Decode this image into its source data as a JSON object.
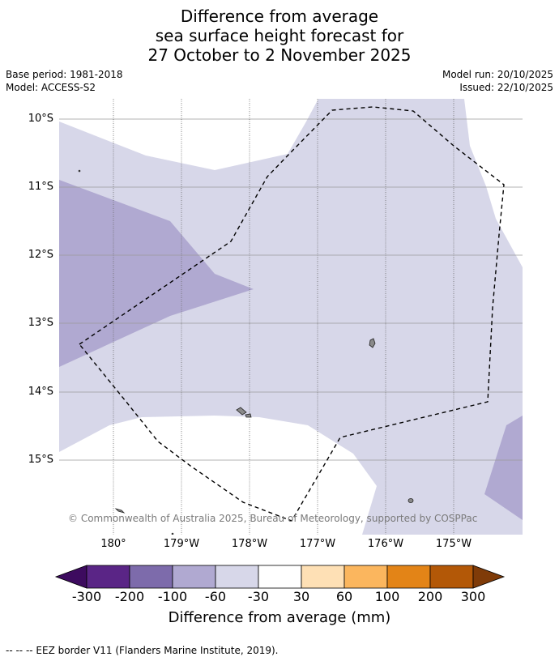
{
  "title": {
    "line1": "Difference from average",
    "line2": "sea surface height forecast for",
    "line3": "27 October to 2 November 2025"
  },
  "meta": {
    "base_period": "Base period: 1981-2018",
    "model": "Model: ACCESS-S2",
    "model_run": "Model run: 20/10/2025",
    "issued": "Issued: 22/10/2025"
  },
  "map": {
    "latitude_labels": [
      "10°S",
      "11°S",
      "12°S",
      "13°S",
      "14°S",
      "15°S"
    ],
    "longitude_labels": [
      "180°",
      "179°W",
      "178°W",
      "177°W",
      "176°W",
      "175°W"
    ],
    "copyright": "© Commonwealth of Australia 2025, Bureau of Meteorology, supported by COSPPac",
    "colors": {
      "category_-60_-30": "#d7d7e9",
      "category_-100_-60": "#b0a9d1",
      "category_-30_30": "#ffffff",
      "eez_border": "#000000",
      "land": "#8a8a8a"
    }
  },
  "colorbar": {
    "ticks": [
      "-300",
      "-200",
      "-100",
      "-60",
      "-30",
      "30",
      "60",
      "100",
      "200",
      "300"
    ],
    "colors": [
      "#3d0b5f",
      "#5a2586",
      "#7d6bab",
      "#b0a9d1",
      "#d7d7e9",
      "#ffffff",
      "#fee0b5",
      "#fbb65e",
      "#e38417",
      "#b35807",
      "#7f3b08"
    ],
    "title": "Difference from average (mm)"
  },
  "footer": {
    "eez_legend": "--  --  -- EEZ border V11 (Flanders Marine Institute, 2019)."
  }
}
